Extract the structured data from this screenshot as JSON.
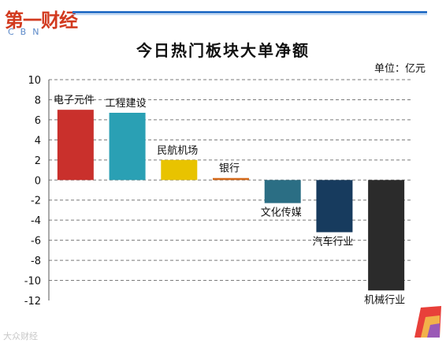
{
  "header": {
    "logo_main": "第一财经",
    "logo_sub": "CBN",
    "watermark": "大众财经"
  },
  "chart_data": {
    "type": "bar",
    "title": "今日热门板块大单净额",
    "unit_label": "单位：亿元",
    "ylim": [
      -12,
      10
    ],
    "yticks": [
      10,
      8,
      6,
      4,
      2,
      0,
      -2,
      -4,
      -6,
      -8,
      -10,
      -12
    ],
    "grid": true,
    "categories": [
      "电子元件",
      "工程建设",
      "民航机场",
      "银行",
      "文化传媒",
      "汽车行业",
      "机械行业"
    ],
    "values": [
      7.0,
      6.7,
      2.0,
      0.2,
      -2.3,
      -5.2,
      -11.0
    ],
    "colors": [
      "#c9302c",
      "#2aa0b4",
      "#e8c300",
      "#d4691a",
      "#2b6e84",
      "#173b5e",
      "#2b2b2b"
    ]
  }
}
